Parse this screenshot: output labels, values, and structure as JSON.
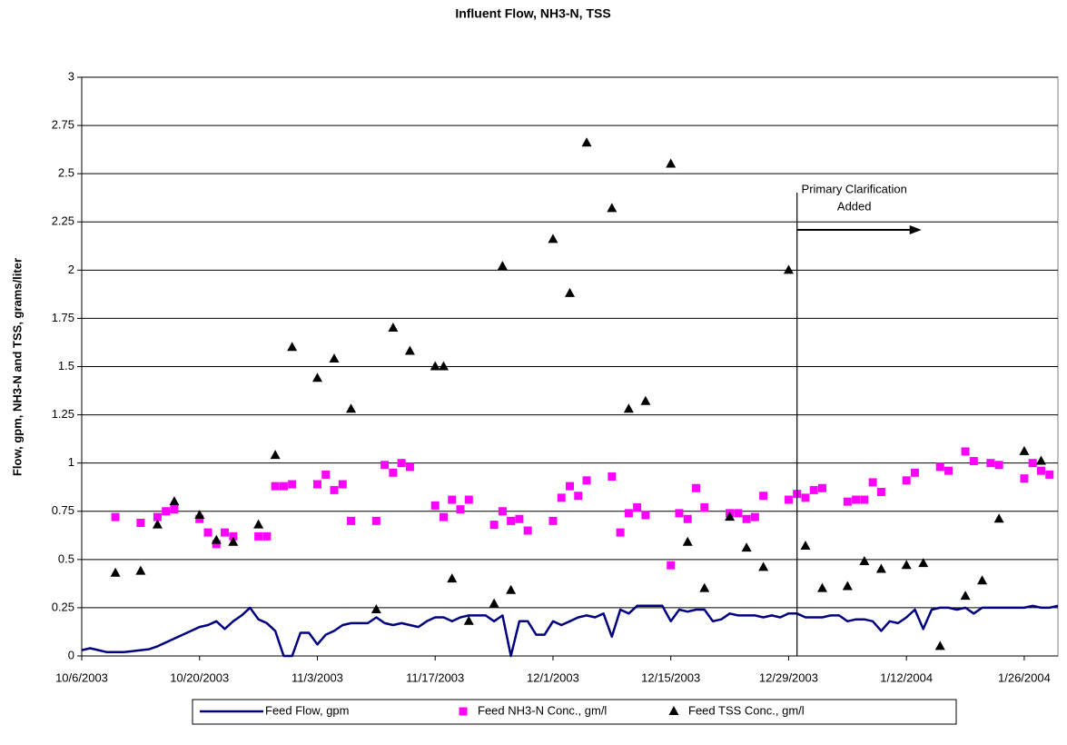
{
  "chart_data": {
    "type": "combo",
    "title": "Influent Flow, NH3-N, TSS",
    "y_label": "Flow, gpm, NH3-N and TSS, grams/liter",
    "xlim": [
      "10/6/2003",
      "1/30/2004"
    ],
    "xticks": [
      "10/6/2003",
      "10/20/2003",
      "11/3/2003",
      "11/17/2003",
      "12/1/2003",
      "12/15/2003",
      "12/29/2003",
      "1/12/2004",
      "1/26/2004"
    ],
    "ylim": [
      0,
      3
    ],
    "yticks": [
      0,
      0.25,
      0.5,
      0.75,
      1,
      1.25,
      1.5,
      1.75,
      2,
      2.25,
      2.5,
      2.75,
      3
    ],
    "grid": true,
    "legend": "bottom",
    "annotation": {
      "text": [
        "Primary Clarification",
        "Added"
      ],
      "x": "12/30/2003"
    },
    "series": [
      {
        "name": "Feed Flow, gpm",
        "type": "line",
        "color": "#000080",
        "x": [
          "10/6/2003",
          "10/7/2003",
          "10/8/2003",
          "10/9/2003",
          "10/10/2003",
          "10/11/2003",
          "10/12/2003",
          "10/13/2003",
          "10/14/2003",
          "10/15/2003",
          "10/16/2003",
          "10/17/2003",
          "10/18/2003",
          "10/19/2003",
          "10/20/2003",
          "10/21/2003",
          "10/22/2003",
          "10/23/2003",
          "10/24/2003",
          "10/25/2003",
          "10/26/2003",
          "10/27/2003",
          "10/28/2003",
          "10/29/2003",
          "10/30/2003",
          "10/31/2003",
          "11/1/2003",
          "11/2/2003",
          "11/3/2003",
          "11/4/2003",
          "11/5/2003",
          "11/6/2003",
          "11/7/2003",
          "11/8/2003",
          "11/9/2003",
          "11/10/2003",
          "11/11/2003",
          "11/12/2003",
          "11/13/2003",
          "11/14/2003",
          "11/15/2003",
          "11/16/2003",
          "11/17/2003",
          "11/18/2003",
          "11/19/2003",
          "11/20/2003",
          "11/21/2003",
          "11/22/2003",
          "11/23/2003",
          "11/24/2003",
          "11/25/2003",
          "11/26/2003",
          "11/27/2003",
          "11/28/2003",
          "11/29/2003",
          "11/30/2003",
          "12/1/2003",
          "12/2/2003",
          "12/3/2003",
          "12/4/2003",
          "12/5/2003",
          "12/6/2003",
          "12/7/2003",
          "12/8/2003",
          "12/9/2003",
          "12/10/2003",
          "12/11/2003",
          "12/12/2003",
          "12/13/2003",
          "12/14/2003",
          "12/15/2003",
          "12/16/2003",
          "12/17/2003",
          "12/18/2003",
          "12/19/2003",
          "12/20/2003",
          "12/21/2003",
          "12/22/2003",
          "12/23/2003",
          "12/24/2003",
          "12/25/2003",
          "12/26/2003",
          "12/27/2003",
          "12/28/2003",
          "12/29/2003",
          "12/30/2003",
          "12/31/2003",
          "1/1/2004",
          "1/2/2004",
          "1/3/2004",
          "1/4/2004",
          "1/5/2004",
          "1/6/2004",
          "1/7/2004",
          "1/8/2004",
          "1/9/2004",
          "1/10/2004",
          "1/11/2004",
          "1/12/2004",
          "1/13/2004",
          "1/14/2004",
          "1/15/2004",
          "1/16/2004",
          "1/17/2004",
          "1/18/2004",
          "1/19/2004",
          "1/20/2004",
          "1/21/2004",
          "1/22/2004",
          "1/23/2004",
          "1/24/2004",
          "1/25/2004",
          "1/26/2004",
          "1/27/2004",
          "1/28/2004",
          "1/29/2004",
          "1/30/2004"
        ],
        "values": [
          0.03,
          0.04,
          0.03,
          0.02,
          0.02,
          0.02,
          0.025,
          0.03,
          0.035,
          0.05,
          0.07,
          0.09,
          0.11,
          0.13,
          0.15,
          0.16,
          0.18,
          0.14,
          0.18,
          0.21,
          0.25,
          0.19,
          0.17,
          0.13,
          0,
          0,
          0.12,
          0.12,
          0.06,
          0.11,
          0.13,
          0.16,
          0.17,
          0.17,
          0.17,
          0.2,
          0.17,
          0.16,
          0.17,
          0.16,
          0.15,
          0.18,
          0.2,
          0.2,
          0.18,
          0.2,
          0.21,
          0.21,
          0.21,
          0.18,
          0.21,
          0,
          0.18,
          0.18,
          0.11,
          0.11,
          0.18,
          0.16,
          0.18,
          0.2,
          0.21,
          0.2,
          0.22,
          0.1,
          0.24,
          0.22,
          0.26,
          0.26,
          0.26,
          0.26,
          0.18,
          0.24,
          0.23,
          0.24,
          0.24,
          0.18,
          0.19,
          0.22,
          0.21,
          0.21,
          0.21,
          0.2,
          0.21,
          0.2,
          0.22,
          0.22,
          0.2,
          0.2,
          0.2,
          0.21,
          0.21,
          0.18,
          0.19,
          0.19,
          0.18,
          0.13,
          0.18,
          0.17,
          0.2,
          0.24,
          0.14,
          0.24,
          0.25,
          0.25,
          0.24,
          0.25,
          0.22,
          0.25,
          0.25,
          0.25,
          0.25,
          0.25,
          0.25,
          0.26,
          0.25,
          0.25,
          0.26
        ]
      },
      {
        "name": "Feed NH3-N Conc., gm/l",
        "type": "scatter",
        "marker": "square",
        "color": "#ff00ff",
        "x": [
          "10/10/2003",
          "10/13/2003",
          "10/15/2003",
          "10/16/2003",
          "10/17/2003",
          "10/20/2003",
          "10/21/2003",
          "10/22/2003",
          "10/23/2003",
          "10/24/2003",
          "10/27/2003",
          "10/28/2003",
          "10/29/2003",
          "10/30/2003",
          "10/31/2003",
          "11/3/2003",
          "11/4/2003",
          "11/5/2003",
          "11/6/2003",
          "11/7/2003",
          "11/10/2003",
          "11/11/2003",
          "11/12/2003",
          "11/13/2003",
          "11/14/2003",
          "11/17/2003",
          "11/18/2003",
          "11/19/2003",
          "11/20/2003",
          "11/21/2003",
          "11/24/2003",
          "11/25/2003",
          "11/26/2003",
          "11/27/2003",
          "11/28/2003",
          "12/1/2003",
          "12/2/2003",
          "12/3/2003",
          "12/4/2003",
          "12/5/2003",
          "12/8/2003",
          "12/9/2003",
          "12/10/2003",
          "12/11/2003",
          "12/12/2003",
          "12/15/2003",
          "12/16/2003",
          "12/17/2003",
          "12/18/2003",
          "12/19/2003",
          "12/22/2003",
          "12/23/2003",
          "12/24/2003",
          "12/25/2003",
          "12/26/2003",
          "12/29/2003",
          "12/30/2003",
          "12/31/2003",
          "1/1/2004",
          "1/2/2004",
          "1/5/2004",
          "1/6/2004",
          "1/7/2004",
          "1/8/2004",
          "1/9/2004",
          "1/12/2004",
          "1/13/2004",
          "1/16/2004",
          "1/17/2004",
          "1/19/2004",
          "1/20/2004",
          "1/22/2004",
          "1/23/2004",
          "1/26/2004",
          "1/27/2004",
          "1/28/2004",
          "1/29/2004"
        ],
        "values": [
          0.72,
          0.69,
          0.72,
          0.75,
          0.76,
          0.71,
          0.64,
          0.58,
          0.64,
          0.62,
          0.62,
          0.62,
          0.88,
          0.88,
          0.89,
          0.89,
          0.94,
          0.86,
          0.89,
          0.7,
          0.7,
          0.99,
          0.95,
          1.0,
          0.98,
          0.78,
          0.72,
          0.81,
          0.76,
          0.81,
          0.68,
          0.75,
          0.7,
          0.71,
          0.65,
          0.7,
          0.82,
          0.88,
          0.83,
          0.91,
          0.93,
          0.64,
          0.74,
          0.77,
          0.73,
          0.47,
          0.74,
          0.71,
          0.87,
          0.77,
          0.74,
          0.74,
          0.71,
          0.72,
          0.83,
          0.81,
          0.84,
          0.82,
          0.86,
          0.87,
          0.8,
          0.81,
          0.81,
          0.9,
          0.85,
          0.91,
          0.95,
          0.98,
          0.96,
          1.06,
          1.01,
          1.0,
          0.99,
          0.92,
          1.0,
          0.96,
          0.94
        ]
      },
      {
        "name": "Feed TSS Conc., gm/l",
        "type": "scatter",
        "marker": "triangle",
        "color": "#000000",
        "x": [
          "10/10/2003",
          "10/13/2003",
          "10/15/2003",
          "10/17/2003",
          "10/20/2003",
          "10/22/2003",
          "10/24/2003",
          "10/27/2003",
          "10/29/2003",
          "10/31/2003",
          "11/3/2003",
          "11/5/2003",
          "11/7/2003",
          "11/10/2003",
          "11/12/2003",
          "11/14/2003",
          "11/17/2003",
          "11/18/2003",
          "11/19/2003",
          "11/21/2003",
          "11/24/2003",
          "11/25/2003",
          "11/26/2003",
          "12/1/2003",
          "12/3/2003",
          "12/5/2003",
          "12/8/2003",
          "12/10/2003",
          "12/12/2003",
          "12/15/2003",
          "12/17/2003",
          "12/19/2003",
          "12/22/2003",
          "12/24/2003",
          "12/26/2003",
          "12/29/2003",
          "12/31/2003",
          "1/2/2004",
          "1/5/2004",
          "1/7/2004",
          "1/9/2004",
          "1/12/2004",
          "1/14/2004",
          "1/16/2004",
          "1/19/2004",
          "1/21/2004",
          "1/23/2004",
          "1/26/2004",
          "1/28/2004"
        ],
        "values": [
          0.43,
          0.44,
          0.68,
          0.8,
          0.73,
          0.6,
          0.59,
          0.68,
          1.04,
          1.6,
          1.44,
          1.54,
          1.28,
          0.24,
          1.7,
          1.58,
          1.5,
          1.5,
          0.4,
          0.18,
          0.27,
          2.02,
          0.34,
          2.16,
          1.88,
          2.66,
          2.32,
          1.28,
          1.32,
          2.55,
          0.59,
          0.35,
          0.72,
          0.56,
          0.46,
          2.0,
          0.57,
          0.35,
          0.36,
          0.49,
          0.45,
          0.47,
          0.48,
          0.05,
          0.31,
          0.39,
          0.71,
          1.06,
          1.01
        ]
      }
    ]
  }
}
